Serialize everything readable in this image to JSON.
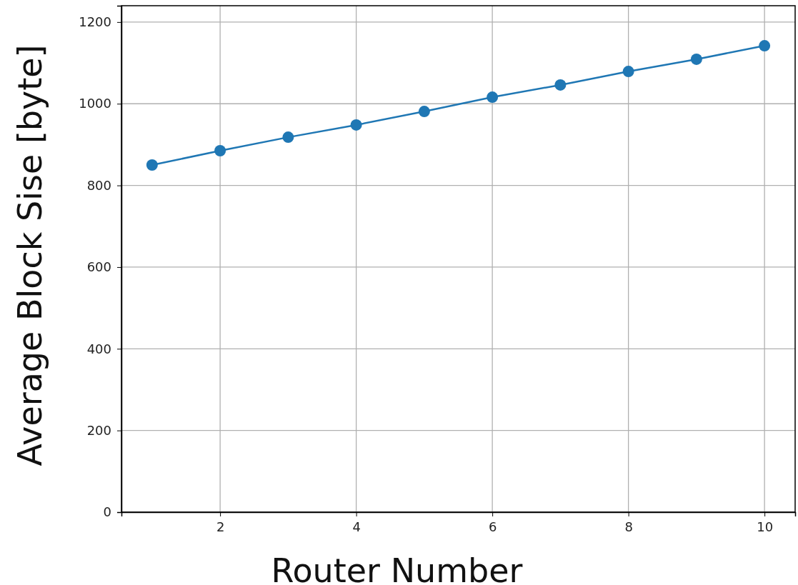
{
  "chart_data": {
    "type": "line",
    "xlabel": "Router Number",
    "ylabel": "Average Block Sise [byte]",
    "x": [
      1,
      2,
      3,
      4,
      5,
      6,
      7,
      8,
      9,
      10
    ],
    "series": [
      {
        "color": "#1f77b4",
        "values": [
          850,
          885,
          918,
          948,
          981,
          1016,
          1046,
          1079,
          1109,
          1142
        ]
      }
    ],
    "xlim": [
      0.55,
      10.45
    ],
    "xticks": [
      2,
      4,
      6,
      8,
      10
    ],
    "ylim": [
      0,
      1240
    ],
    "yticks": [
      0,
      200,
      400,
      600,
      800,
      1000,
      1200
    ],
    "grid": true,
    "marker": "circle",
    "line_style": "solid"
  }
}
